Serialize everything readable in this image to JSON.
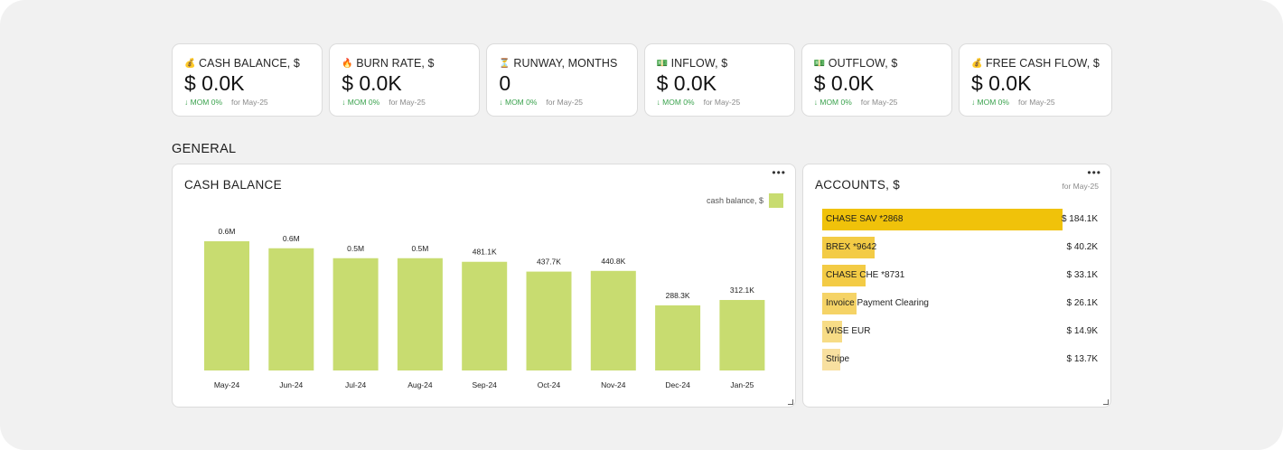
{
  "kpis": [
    {
      "icon": "money-bag-icon",
      "glyph": "💰",
      "title": "CASH BALANCE, $",
      "value": "$ 0.0K",
      "mom": "↓ MOM 0%",
      "for": "for May-25"
    },
    {
      "icon": "fire-icon",
      "glyph": "🔥",
      "title": "BURN RATE, $",
      "value": "$ 0.0K",
      "mom": "↓ MOM 0%",
      "for": "for May-25"
    },
    {
      "icon": "hourglass-icon",
      "glyph": "⏳",
      "title": "RUNWAY, MONTHS",
      "value": "0",
      "mom": "↓ MOM 0%",
      "for": "for May-25"
    },
    {
      "icon": "money-bills-icon",
      "glyph": "💵",
      "title": "INFLOW, $",
      "value": "$ 0.0K",
      "mom": "↓ MOM 0%",
      "for": "for May-25"
    },
    {
      "icon": "money-bills-icon",
      "glyph": "💵",
      "title": "OUTFLOW, $",
      "value": "$ 0.0K",
      "mom": "↓ MOM 0%",
      "for": "for May-25"
    },
    {
      "icon": "money-bag-icon",
      "glyph": "💰",
      "title": "FREE CASH FLOW, $",
      "value": "$ 0.0K",
      "mom": "↓ MOM 0%",
      "for": "for May-25"
    }
  ],
  "section": {
    "title": "GENERAL"
  },
  "cash_panel": {
    "title": "CASH BALANCE",
    "menu": "•••"
  },
  "accounts_panel": {
    "title": "ACCOUNTS, $",
    "menu": "•••",
    "for": "for May-25"
  },
  "colors": {
    "bar": "#c8dc70",
    "account_bars": [
      "#f0c20a",
      "#f3cb45",
      "#f3cb45",
      "#f5d366",
      "#f7dc86",
      "#f8e0a0"
    ],
    "mom": "#3aa24d"
  },
  "chart_data": {
    "type": "bar",
    "title": "CASH BALANCE",
    "categories": [
      "May-24",
      "Jun-24",
      "Jul-24",
      "Aug-24",
      "Sep-24",
      "Oct-24",
      "Nov-24",
      "Dec-24",
      "Jan-25"
    ],
    "series": [
      {
        "name": "cash balance, $",
        "values": [
          572000,
          541000,
          497000,
          497000,
          481100,
          437700,
          440800,
          288300,
          312100
        ],
        "labels": [
          "0.6M",
          "0.6M",
          "0.5M",
          "0.5M",
          "481.1K",
          "437.7K",
          "440.8K",
          "288.3K",
          "312.1K"
        ]
      }
    ],
    "ylim": [
      0,
      640000
    ],
    "grid": false,
    "legend": "top-right"
  },
  "accounts": [
    {
      "name": "CHASE SAV *2868",
      "value": 184.1,
      "label": "$ 184.1K"
    },
    {
      "name": "BREX *9642",
      "value": 40.2,
      "label": "$ 40.2K"
    },
    {
      "name": "CHASE CHE *8731",
      "value": 33.1,
      "label": "$ 33.1K"
    },
    {
      "name": "Invoice Payment Clearing",
      "value": 26.1,
      "label": "$ 26.1K"
    },
    {
      "name": "WISE EUR",
      "value": 14.9,
      "label": "$ 14.9K"
    },
    {
      "name": "Stripe",
      "value": 13.7,
      "label": "$ 13.7K"
    }
  ]
}
